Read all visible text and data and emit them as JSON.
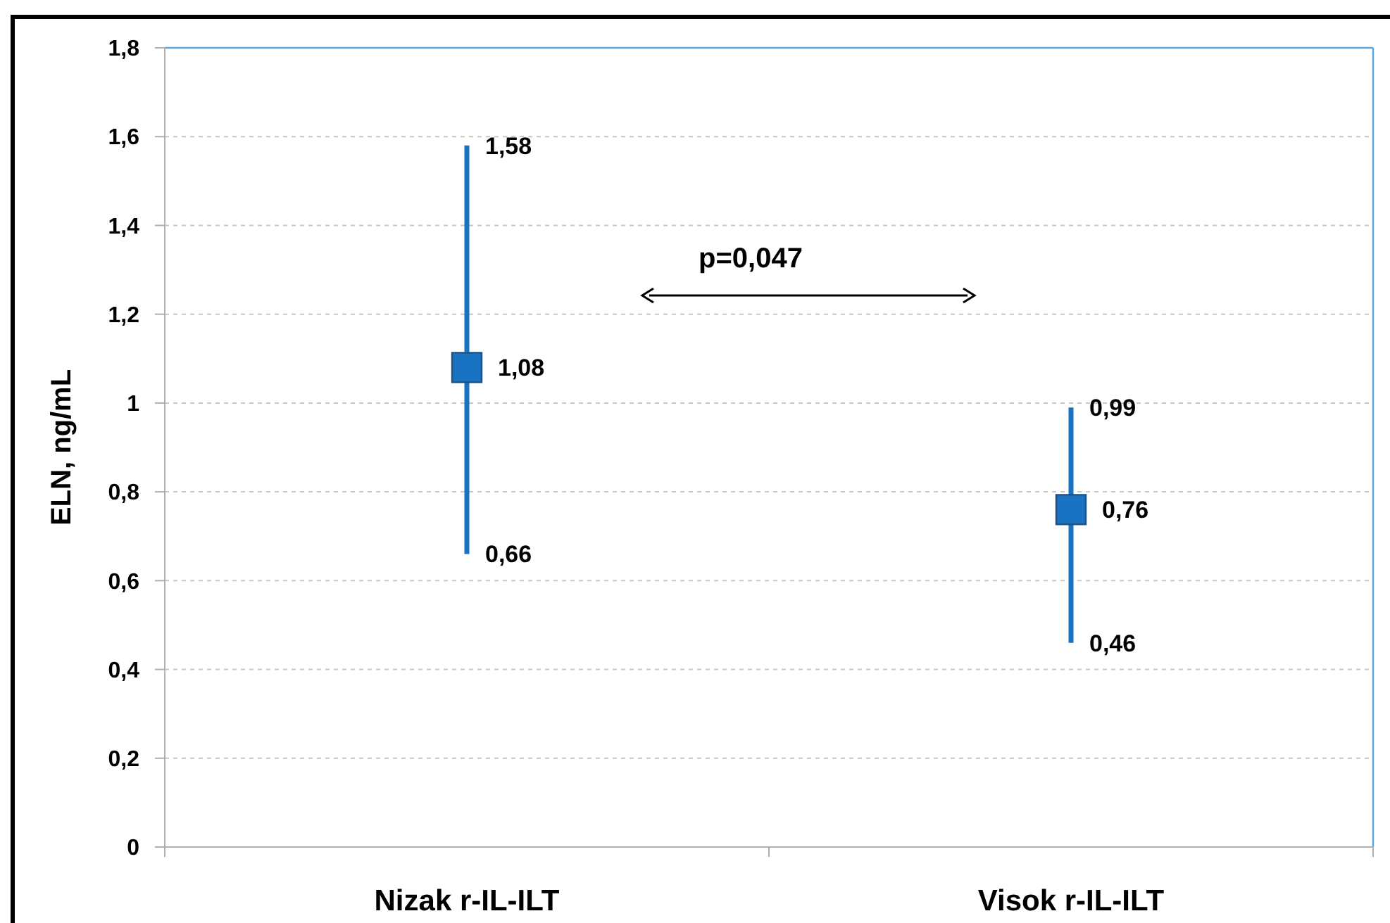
{
  "chart_data": {
    "type": "scatter",
    "ylabel": "ELN, ng/mL",
    "categories": [
      "Nizak r-IL-ILT",
      "Visok r-IL-ILT"
    ],
    "series": [
      {
        "color": "#1a72c2",
        "values": [
          1.08,
          0.76
        ],
        "errors": [
          [
            0.66,
            1.58
          ],
          [
            0.46,
            0.99
          ]
        ],
        "value_labels": [
          "1,08",
          "0,76"
        ]
      }
    ],
    "marker": "square",
    "grid": "y",
    "ylim": [
      0,
      1.8
    ],
    "yticks": [
      0,
      {
        "value": 0.2,
        "label": "0,2"
      },
      {
        "value": 0.4,
        "label": "0,4"
      },
      {
        "value": 0.6,
        "label": "0,6"
      },
      {
        "value": 0.8,
        "label": "0,8"
      },
      1,
      {
        "value": 1.2,
        "label": "1,2"
      },
      {
        "value": 1.4,
        "label": "1,4"
      },
      {
        "value": 1.6,
        "label": "1,6"
      },
      {
        "value": 1.8,
        "label": "1,8"
      }
    ],
    "annotations": [
      {
        "text": "1,58",
        "x": "Nizak r-IL-ILT",
        "y": 1.58
      },
      {
        "text": "0,66",
        "x": "Nizak r-IL-ILT",
        "y": 0.66
      },
      {
        "text": "0,99",
        "x": "Visok r-IL-ILT",
        "y": 0.99
      },
      {
        "text": "0,46",
        "x": "Visok r-IL-ILT",
        "y": 0.46
      },
      "p=0,047"
    ]
  }
}
